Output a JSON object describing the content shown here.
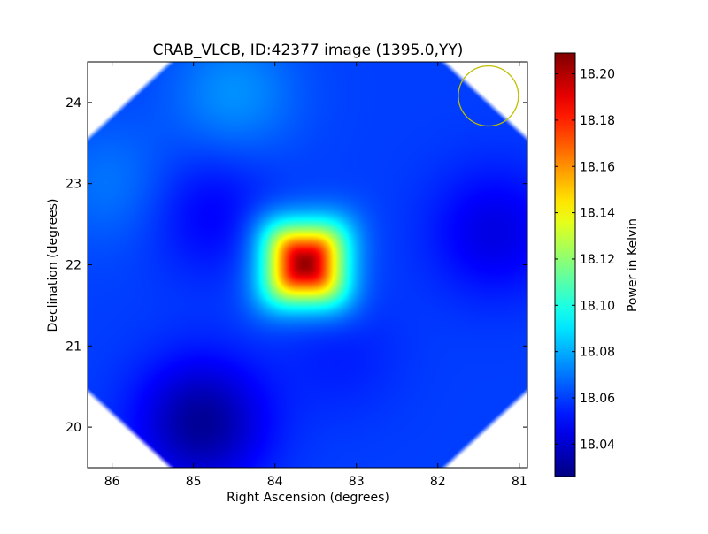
{
  "chart_data": {
    "type": "heatmap",
    "title": "CRAB_VLCB, ID:42377 image (1395.0,YY)",
    "xlabel": "Right Ascension (degrees)",
    "ylabel": "Declination (degrees)",
    "xlim": [
      86.3,
      80.9
    ],
    "ylim": [
      19.5,
      24.5
    ],
    "x_inverted": true,
    "x_ticks": [
      "86",
      "85",
      "84",
      "83",
      "82",
      "81"
    ],
    "x_tick_values": [
      86,
      85,
      84,
      83,
      82,
      81
    ],
    "y_ticks": [
      "20",
      "21",
      "22",
      "23",
      "24"
    ],
    "y_tick_values": [
      20,
      21,
      22,
      23,
      24
    ],
    "colormap": "jet",
    "colorbar": {
      "label": "Power in Kelvin",
      "min": 18.026,
      "max": 18.209,
      "ticks": [
        "18.04",
        "18.06",
        "18.08",
        "18.10",
        "18.12",
        "18.14",
        "18.16",
        "18.18",
        "18.20"
      ],
      "tick_values": [
        18.04,
        18.06,
        18.08,
        18.1,
        18.12,
        18.14,
        18.16,
        18.18,
        18.2
      ]
    },
    "peak": {
      "ra": 83.63,
      "dec": 22.01,
      "value": 18.205
    },
    "background_value": 18.06,
    "features": [
      {
        "ra": 84.9,
        "dec": 20.05,
        "value": 18.03
      },
      {
        "ra": 84.8,
        "dec": 22.65,
        "value": 18.048
      },
      {
        "ra": 81.3,
        "dec": 22.4,
        "value": 18.044
      },
      {
        "ra": 83.2,
        "dec": 20.9,
        "value": 18.054
      },
      {
        "ra": 84.5,
        "dec": 24.1,
        "value": 18.075
      },
      {
        "ra": 86.0,
        "dec": 23.0,
        "value": 18.07
      }
    ],
    "beam_circle": {
      "ra": 81.38,
      "dec": 24.08,
      "radius_deg": 0.37,
      "color": "#bfbf00"
    },
    "grid": false
  }
}
